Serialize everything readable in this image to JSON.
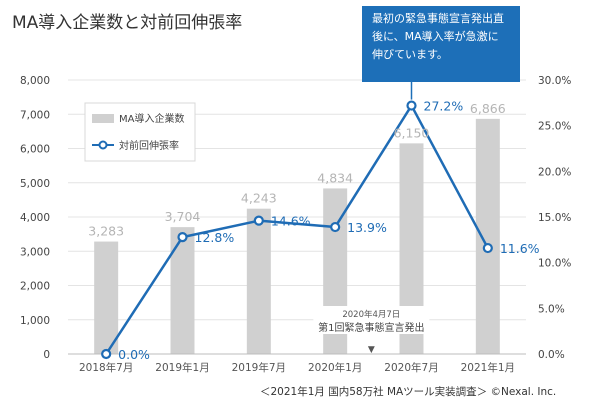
{
  "title": "MA導入企業数と対前回伸張率",
  "callout": {
    "lines": [
      "最初の緊急事態宣言発出直",
      "後に、MA導入率が急激に",
      "伸びています。"
    ]
  },
  "footnote": "＜2021年1月 国内58万社 MAツール実装調査＞ ©Nexal. Inc.",
  "colors": {
    "bar": "#d0d0d0",
    "line": "#1f6cb5",
    "grid": "#e4e4e4",
    "callout": "#1d6fb8"
  },
  "chart_data": {
    "type": "bar+line",
    "categories": [
      "2018年7月",
      "2019年1月",
      "2019年7月",
      "2020年1月",
      "2020年7月",
      "2021年1月"
    ],
    "series": [
      {
        "name": "MA導入企業数",
        "type": "bar",
        "axis": "left",
        "values": [
          3283,
          3704,
          4243,
          4834,
          6150,
          6866
        ],
        "labels": [
          "3,283",
          "3,704",
          "4,243",
          "4,834",
          "6,150",
          "6,866"
        ]
      },
      {
        "name": "対前回伸張率",
        "type": "line",
        "axis": "right",
        "values": [
          0.0,
          12.8,
          14.6,
          13.9,
          27.2,
          11.6
        ],
        "labels": [
          "0.0%",
          "12.8%",
          "14.6%",
          "13.9%",
          "27.2%",
          "11.6%"
        ]
      }
    ],
    "y_left": {
      "min": 0,
      "max": 8000,
      "ticks": [
        "0",
        "1,000",
        "2,000",
        "3,000",
        "4,000",
        "5,000",
        "6,000",
        "7,000",
        "8,000"
      ]
    },
    "y_right": {
      "min": 0,
      "max": 30,
      "ticks": [
        "0.0%",
        "5.0%",
        "10.0%",
        "15.0%",
        "20.0%",
        "25.0%",
        "30.0%"
      ]
    },
    "grid": true,
    "legend": "top-left",
    "annotation": {
      "category": "2020年1月",
      "lines": [
        "2020年4月7日",
        "第1回緊急事態宣言発出"
      ],
      "marker": "▼"
    }
  }
}
